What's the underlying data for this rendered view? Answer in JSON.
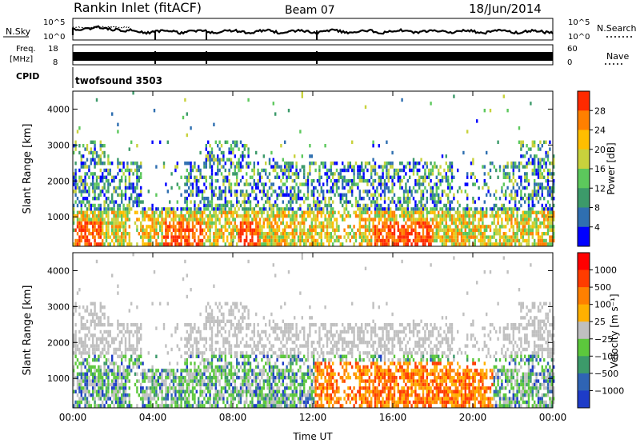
{
  "header": {
    "station": "Rankin Inlet (fitACF)",
    "beam": "Beam 07",
    "date": "18/Jun/2014"
  },
  "panels": {
    "nsky_label": "N.Sky",
    "nsearch_label": "N.Search",
    "noise_ticks": [
      "10^5",
      "10^0"
    ],
    "freq_label_line1": "Freq.",
    "freq_label_line2": "[MHz]",
    "freq_ticks": [
      "18",
      "8"
    ],
    "nave_label": "Nave",
    "nave_ticks": [
      "60",
      "0"
    ],
    "cpid_label": "CPID",
    "cpid_value": "twofsound 3503"
  },
  "power_colorbar": {
    "label": "Power [dB]",
    "ticks": [
      "4",
      "8",
      "12",
      "16",
      "20",
      "24",
      "28"
    ],
    "colors": [
      "#0000ff",
      "#2f6fb0",
      "#3c9a6a",
      "#5cc85c",
      "#c8d23c",
      "#ffbe00",
      "#ff8000",
      "#ff2a00"
    ]
  },
  "velocity_colorbar": {
    "label": "Velocity [m s⁻¹]",
    "ticks": [
      "1000",
      "500",
      "100",
      "25",
      "−25",
      "−100",
      "−500",
      "−1000"
    ],
    "colors": [
      "#1e3cc8",
      "#2f64b4",
      "#3c9a6a",
      "#5cc83c",
      "#c0c0c0",
      "#ffb000",
      "#ff8000",
      "#ff3c00",
      "#ff0000"
    ]
  },
  "chart_data": [
    {
      "type": "heatmap",
      "title": "Power",
      "ylabel": "Slant Range [km]",
      "ylim": [
        180,
        4500
      ],
      "yticks": [
        1000,
        2000,
        3000,
        4000
      ],
      "xlim_hours": [
        0,
        24
      ],
      "xticks": [
        "00:00",
        "04:00",
        "08:00",
        "12:00",
        "16:00",
        "20:00",
        "00:00"
      ],
      "colorbar_range": [
        0,
        30
      ]
    },
    {
      "type": "heatmap",
      "title": "Velocity",
      "ylabel": "Slant Range [km]",
      "xlabel": "Time UT",
      "ylim": [
        180,
        4500
      ],
      "yticks": [
        1000,
        2000,
        3000,
        4000
      ],
      "xlim_hours": [
        0,
        24
      ],
      "xticks": [
        "00:00",
        "04:00",
        "08:00",
        "12:00",
        "16:00",
        "20:00",
        "00:00"
      ],
      "colorbar_range": [
        -1000,
        1000
      ]
    }
  ]
}
